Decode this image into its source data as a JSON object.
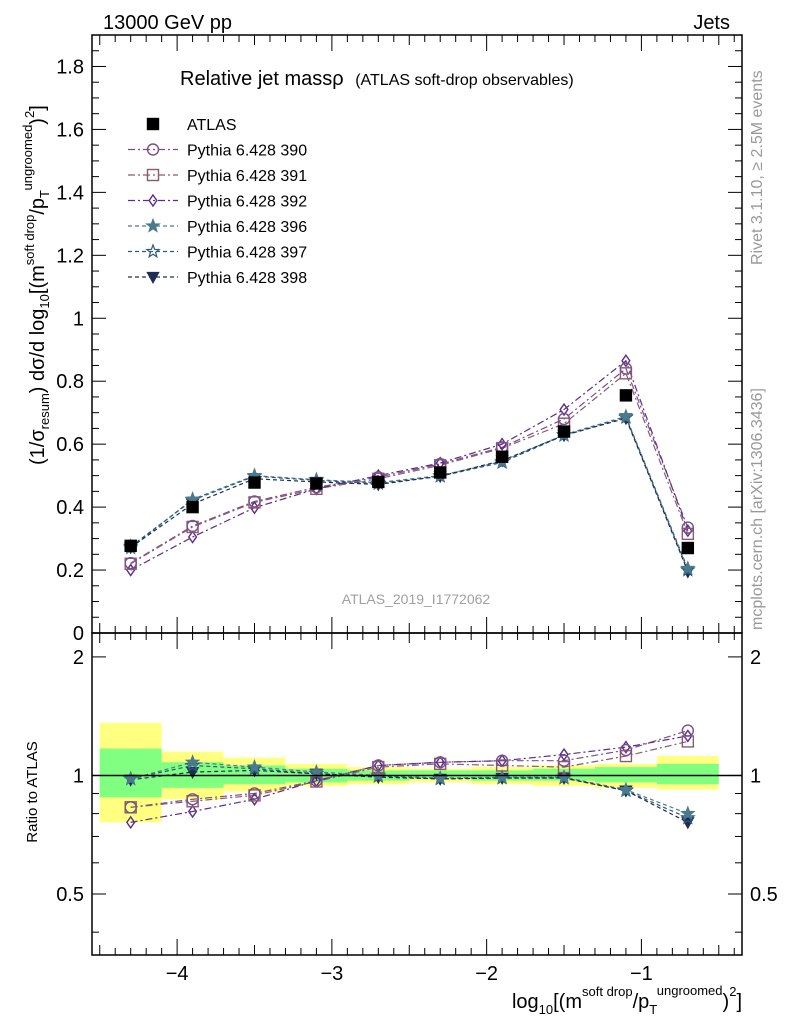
{
  "header": {
    "left": "13000 GeV pp",
    "right": "Jets"
  },
  "side_labels": {
    "rivet": "Rivet 3.1.10, ≥ 2.5M events",
    "mcplots": "mcplots.cern.ch [arXiv:1306.3436]"
  },
  "watermark": "ATLAS_2019_I1772062",
  "colors": {
    "data": "#000000",
    "p390": "#7b4f8c",
    "p391": "#8c5a6a",
    "p392": "#5a2d8c",
    "p396": "#4a7a8c",
    "p397": "#2d5a7a",
    "p398": "#1e2d55",
    "band_inner": "#80ff80",
    "band_outer": "#ffff80"
  },
  "chart_data": [
    {
      "type": "scatter",
      "title_main": "Relative jet massρ",
      "title_sub": "(ATLAS soft-drop observables)",
      "ylabel_parts": {
        "a": "(1/σ",
        "b": "resum",
        "c": ") dσ/d log",
        "d": "10",
        "e": "[(m",
        "f": "soft drop",
        "g": "/p",
        "h": "T",
        "i": "ungroomed",
        "j": ")",
        "k": "2",
        "l": "]"
      },
      "ylim": [
        0,
        1.9
      ],
      "yticks": [
        0,
        0.2,
        0.4,
        0.6,
        0.8,
        1,
        1.2,
        1.4,
        1.6,
        1.8
      ],
      "ytick_labels": [
        "0",
        "0.2",
        "0.4",
        "0.6",
        "0.8",
        "1",
        "1.2",
        "1.4",
        "1.6",
        "1.8"
      ],
      "x": [
        -4.3,
        -3.9,
        -3.5,
        -3.1,
        -2.7,
        -2.3,
        -1.9,
        -1.5,
        -1.1,
        -0.7
      ],
      "x_edges": [
        -4.5,
        -4.1,
        -3.7,
        -3.3,
        -2.9,
        -2.5,
        -2.1,
        -1.7,
        -1.3,
        -0.9,
        -0.5
      ],
      "series": [
        {
          "name": "ATLAS",
          "key": "data",
          "marker": "square-filled",
          "values": [
            0.277,
            0.4,
            0.478,
            0.475,
            0.48,
            0.51,
            0.56,
            0.64,
            0.755,
            0.27
          ]
        },
        {
          "name": "Pythia 6.428 390",
          "key": "p390",
          "marker": "circle-open",
          "values": [
            0.222,
            0.34,
            0.418,
            0.463,
            0.495,
            0.537,
            0.59,
            0.68,
            0.84,
            0.335
          ]
        },
        {
          "name": "Pythia 6.428 391",
          "key": "p391",
          "marker": "square-open",
          "values": [
            0.22,
            0.337,
            0.415,
            0.458,
            0.49,
            0.533,
            0.587,
            0.665,
            0.825,
            0.315
          ]
        },
        {
          "name": "Pythia 6.428 392",
          "key": "p392",
          "marker": "diamond-open",
          "values": [
            0.2,
            0.305,
            0.398,
            0.458,
            0.5,
            0.54,
            0.6,
            0.71,
            0.865,
            0.325
          ]
        },
        {
          "name": "Pythia 6.428 396",
          "key": "p396",
          "marker": "star-filled",
          "values": [
            0.27,
            0.425,
            0.5,
            0.487,
            0.478,
            0.5,
            0.545,
            0.63,
            0.688,
            0.205
          ]
        },
        {
          "name": "Pythia 6.428 397",
          "key": "p397",
          "marker": "star-open",
          "values": [
            0.275,
            0.422,
            0.498,
            0.485,
            0.475,
            0.498,
            0.542,
            0.628,
            0.685,
            0.2
          ]
        },
        {
          "name": "Pythia 6.428 398",
          "key": "p398",
          "marker": "triangle-down-filled",
          "values": [
            0.272,
            0.41,
            0.49,
            0.48,
            0.472,
            0.498,
            0.548,
            0.628,
            0.682,
            0.195
          ]
        }
      ]
    },
    {
      "type": "scatter",
      "ylabel": "Ratio to ATLAS",
      "ylim": [
        0.35,
        2.3
      ],
      "yticks": [
        0.5,
        1,
        2
      ],
      "ytick_labels": [
        "0.5",
        "1",
        "2"
      ],
      "xlim": [
        -4.55,
        -0.35
      ],
      "xticks": [
        -4,
        -3,
        -2,
        -1
      ],
      "xtick_labels": [
        "−4",
        "−3",
        "−2",
        "−1"
      ],
      "xlabel_parts": {
        "a": "log",
        "b": "10",
        "c": "[(m",
        "d": "soft drop",
        "e": "/p",
        "f": "T",
        "g": "ungroomed",
        "h": ")",
        "i": "2",
        "j": "]"
      },
      "band_inner": [
        [
          0.88,
          1.17
        ],
        [
          0.93,
          1.08
        ],
        [
          0.95,
          1.06
        ],
        [
          0.96,
          1.04
        ],
        [
          0.97,
          1.03
        ],
        [
          0.98,
          1.03
        ],
        [
          0.97,
          1.03
        ],
        [
          0.97,
          1.04
        ],
        [
          0.96,
          1.05
        ],
        [
          0.95,
          1.07
        ]
      ],
      "band_outer": [
        [
          0.76,
          1.36
        ],
        [
          0.87,
          1.15
        ],
        [
          0.91,
          1.11
        ],
        [
          0.94,
          1.07
        ],
        [
          0.95,
          1.05
        ],
        [
          0.96,
          1.04
        ],
        [
          0.95,
          1.05
        ],
        [
          0.94,
          1.06
        ],
        [
          0.93,
          1.07
        ],
        [
          0.92,
          1.12
        ]
      ],
      "series": [
        {
          "name": "Pythia 6.428 390",
          "key": "p390",
          "marker": "circle-open",
          "values": [
            0.83,
            0.87,
            0.9,
            0.97,
            1.06,
            1.08,
            1.09,
            1.09,
            1.16,
            1.3
          ]
        },
        {
          "name": "Pythia 6.428 391",
          "key": "p391",
          "marker": "square-open",
          "values": [
            0.83,
            0.86,
            0.89,
            0.965,
            1.05,
            1.07,
            1.06,
            1.05,
            1.12,
            1.22
          ]
        },
        {
          "name": "Pythia 6.428 392",
          "key": "p392",
          "marker": "diamond-open",
          "values": [
            0.76,
            0.81,
            0.87,
            0.97,
            1.06,
            1.08,
            1.09,
            1.13,
            1.18,
            1.26
          ]
        },
        {
          "name": "Pythia 6.428 396",
          "key": "p396",
          "marker": "star-filled",
          "values": [
            0.98,
            1.08,
            1.05,
            1.02,
            1.0,
            0.985,
            0.99,
            0.99,
            0.92,
            0.8
          ]
        },
        {
          "name": "Pythia 6.428 397",
          "key": "p397",
          "marker": "star-open",
          "values": [
            0.98,
            1.06,
            1.04,
            1.01,
            0.995,
            0.98,
            0.985,
            0.985,
            0.915,
            0.78
          ]
        },
        {
          "name": "Pythia 6.428 398",
          "key": "p398",
          "marker": "triangle-down-filled",
          "values": [
            0.975,
            1.02,
            1.03,
            1.01,
            0.99,
            0.98,
            0.985,
            0.985,
            0.915,
            0.76
          ]
        }
      ]
    }
  ]
}
